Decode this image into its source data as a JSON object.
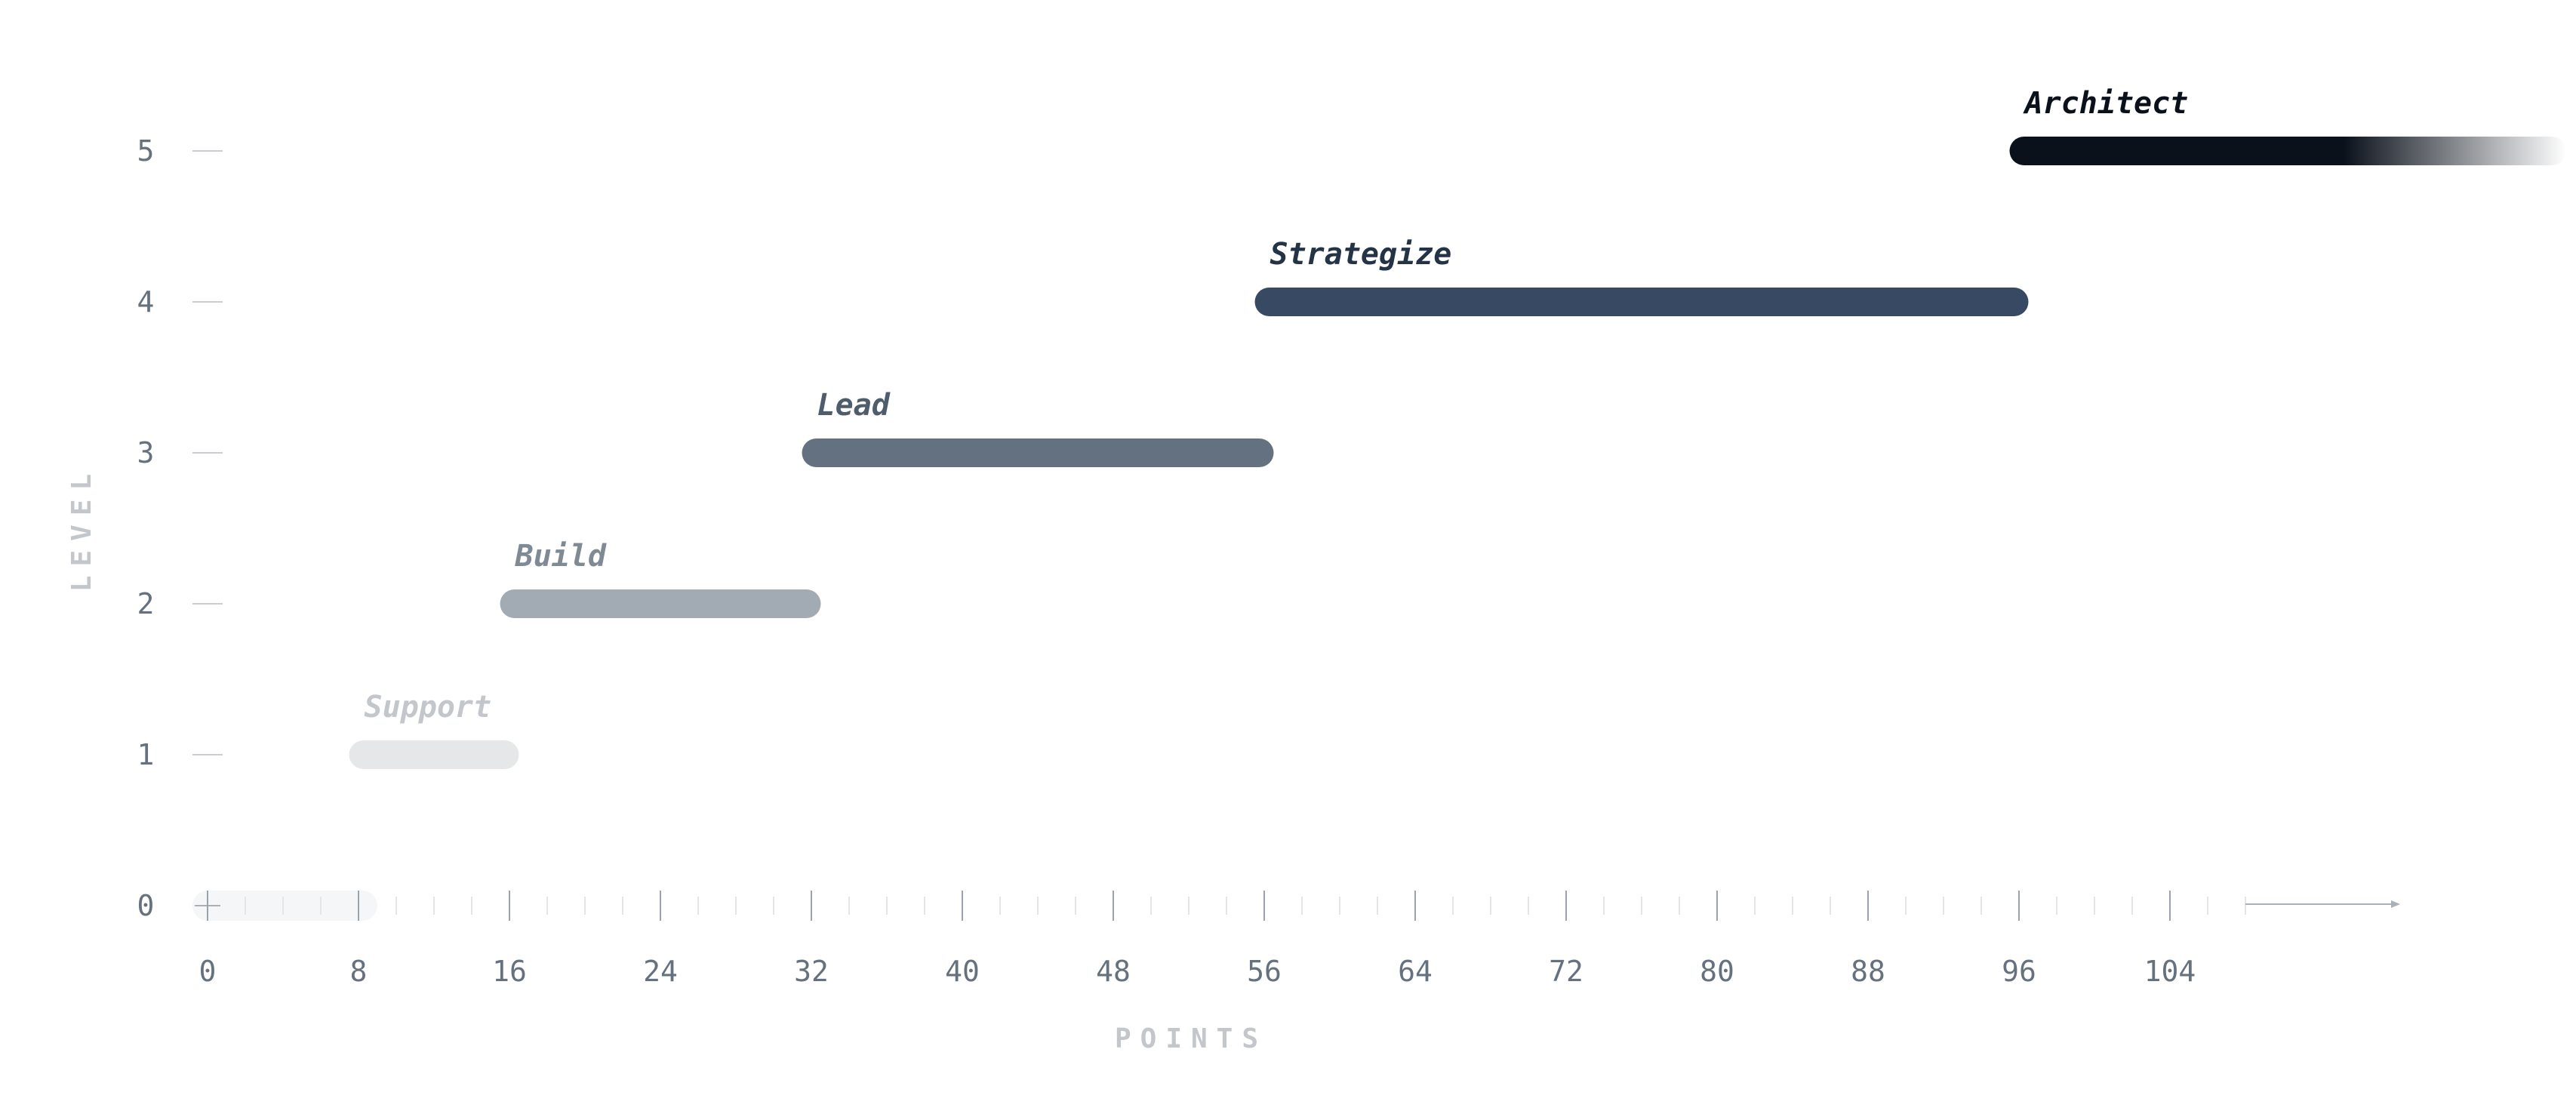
{
  "chart_data": {
    "type": "bar",
    "orientation": "horizontal-range",
    "title": "",
    "xlabel": "POINTS",
    "ylabel": "LEVEL",
    "xlim": [
      0,
      120
    ],
    "ylim": [
      0,
      5
    ],
    "x_ticks": [
      0,
      8,
      16,
      24,
      32,
      40,
      48,
      56,
      64,
      72,
      80,
      88,
      96,
      104
    ],
    "y_ticks": [
      0,
      1,
      2,
      3,
      4,
      5
    ],
    "x_axis_arrow": true,
    "highlight_range": [
      0,
      9
    ],
    "series": [
      {
        "name": "Support",
        "level": 1,
        "start": 7.5,
        "end": 16.5,
        "color": "#e6e7e8",
        "label_color": "#c3c7cc"
      },
      {
        "name": "Build",
        "level": 2,
        "start": 15.5,
        "end": 32.5,
        "color": "#a2abb3",
        "label_color": "#7f8a94"
      },
      {
        "name": "Lead",
        "level": 3,
        "start": 31.5,
        "end": 56.5,
        "color": "#647180",
        "label_color": "#4e5c6c"
      },
      {
        "name": "Strategize",
        "level": 4,
        "start": 55.5,
        "end": 96.5,
        "color": "#384a63",
        "label_color": "#253347"
      },
      {
        "name": "Architect",
        "level": 5,
        "start": 95.5,
        "end": 125,
        "color": "#0b111b",
        "label_color": "#0b111b",
        "fade_out": true
      }
    ]
  }
}
